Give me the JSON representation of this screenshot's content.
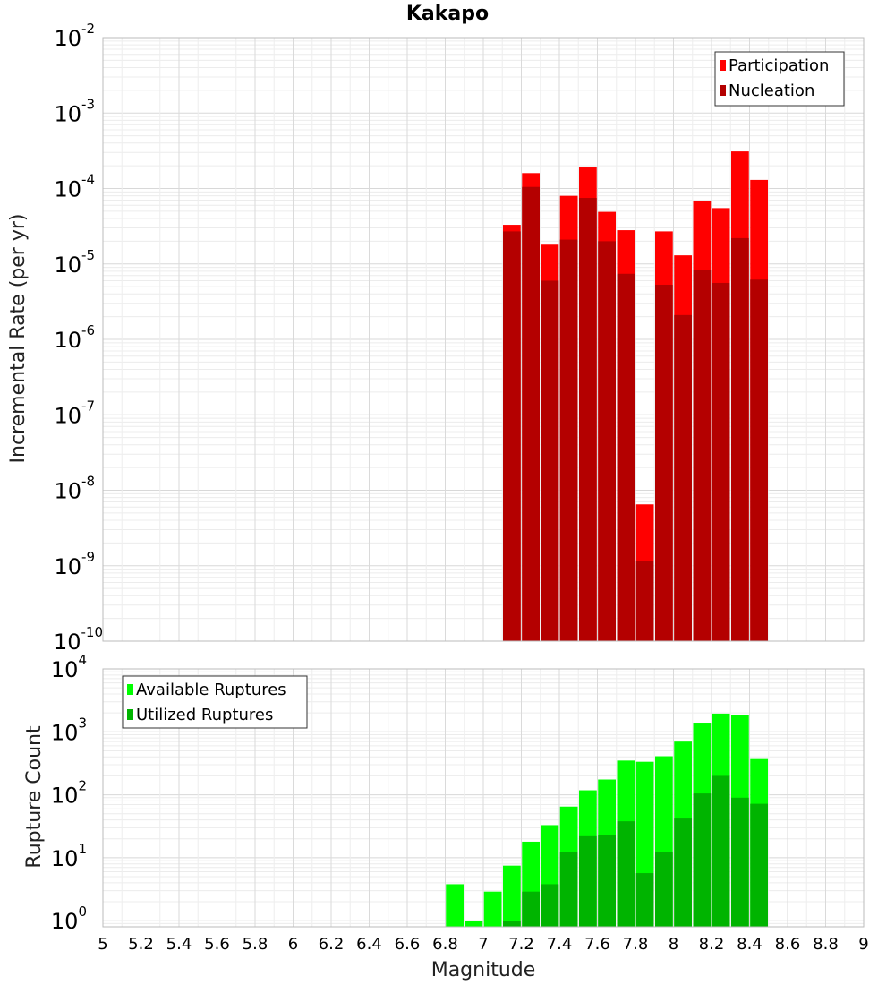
{
  "chart_data": [
    {
      "type": "bar",
      "title": "Kakapo",
      "xlabel": "",
      "ylabel": "Incremental Rate (per yr)",
      "yscale": "log",
      "ylim": [
        1e-10,
        0.01
      ],
      "xlim": [
        5,
        9
      ],
      "grid": true,
      "legend_position": "top-right",
      "y_tick_labels": [
        {
          "base": "10",
          "exp": "-10"
        },
        {
          "base": "10",
          "exp": "-9"
        },
        {
          "base": "10",
          "exp": "-8"
        },
        {
          "base": "10",
          "exp": "-7"
        },
        {
          "base": "10",
          "exp": "-6"
        },
        {
          "base": "10",
          "exp": "-5"
        },
        {
          "base": "10",
          "exp": "-4"
        },
        {
          "base": "10",
          "exp": "-3"
        },
        {
          "base": "10",
          "exp": "-2"
        }
      ],
      "x": [
        7.15,
        7.25,
        7.35,
        7.45,
        7.55,
        7.65,
        7.75,
        7.85,
        7.95,
        8.05,
        8.15,
        8.25,
        8.35,
        8.45
      ],
      "series": [
        {
          "name": "Participation",
          "color": "#ff0000",
          "values": [
            3.3e-05,
            0.00016,
            1.8e-05,
            8e-05,
            0.00019,
            4.9e-05,
            2.8e-05,
            6.5e-09,
            2.7e-05,
            1.3e-05,
            6.9e-05,
            5.5e-05,
            0.00031,
            0.00013
          ]
        },
        {
          "name": "Nucleation",
          "color": "#b40000",
          "values": [
            2.7e-05,
            0.000105,
            6e-06,
            2.1e-05,
            7.5e-05,
            2e-05,
            7.4e-06,
            1.15e-09,
            5.3e-06,
            2.1e-06,
            8.3e-06,
            5.6e-06,
            2.2e-05,
            6.2e-06
          ]
        }
      ]
    },
    {
      "type": "bar",
      "title": "",
      "xlabel": "Magnitude",
      "ylabel": "Rupture Count",
      "yscale": "log",
      "ylim": [
        0.8,
        10000
      ],
      "xlim": [
        5,
        9
      ],
      "grid": true,
      "legend_position": "top-left",
      "y_tick_labels": [
        {
          "base": "10",
          "exp": "0"
        },
        {
          "base": "10",
          "exp": "1"
        },
        {
          "base": "10",
          "exp": "2"
        },
        {
          "base": "10",
          "exp": "3"
        },
        {
          "base": "10",
          "exp": "4"
        }
      ],
      "x_tick_labels": [
        "5",
        "5.2",
        "5.4",
        "5.6",
        "5.8",
        "6",
        "6.2",
        "6.4",
        "6.6",
        "6.8",
        "7",
        "7.2",
        "7.4",
        "7.6",
        "7.8",
        "8",
        "8.2",
        "8.4",
        "8.6",
        "8.8",
        "9"
      ],
      "x": [
        6.85,
        6.95,
        7.05,
        7.15,
        7.25,
        7.35,
        7.45,
        7.55,
        7.65,
        7.75,
        7.85,
        7.95,
        8.05,
        8.15,
        8.25,
        8.35,
        8.45
      ],
      "series": [
        {
          "name": "Available Ruptures",
          "color": "#00ff00",
          "values": [
            3.8,
            1,
            2.9,
            7.5,
            18,
            33,
            65,
            118,
            175,
            350,
            335,
            410,
            700,
            1400,
            1950,
            1850,
            370
          ]
        },
        {
          "name": "Utilized Ruptures",
          "color": "#00b400",
          "values": [
            null,
            null,
            null,
            1,
            2.9,
            3.8,
            12.5,
            22,
            23,
            38,
            5.7,
            12.5,
            42,
            105,
            200,
            90,
            72
          ]
        }
      ]
    }
  ]
}
